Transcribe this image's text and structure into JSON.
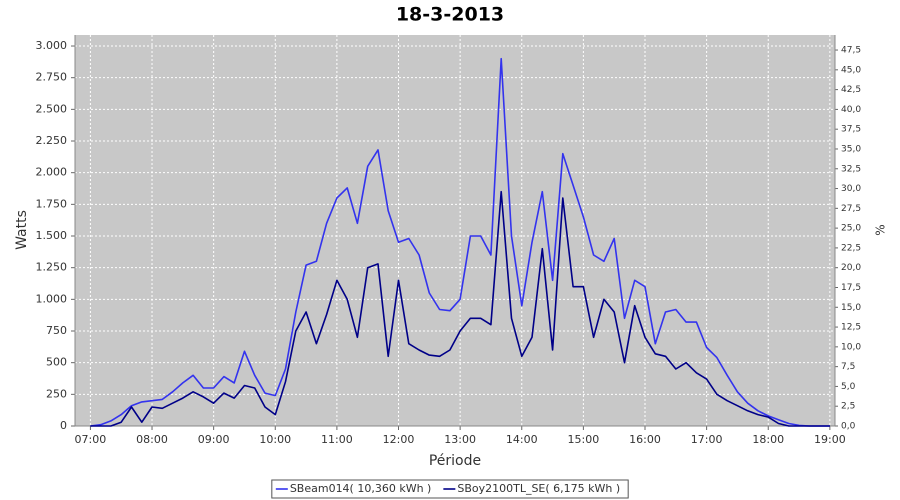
{
  "chart_data": {
    "type": "line",
    "title": "18-3-2013",
    "xlabel": "Période",
    "ylabel": "Watts",
    "y2label": "%",
    "x": [
      "07:00",
      "07:10",
      "07:20",
      "07:30",
      "07:40",
      "07:50",
      "08:00",
      "08:10",
      "08:20",
      "08:30",
      "08:40",
      "08:50",
      "09:00",
      "09:10",
      "09:20",
      "09:30",
      "09:40",
      "09:50",
      "10:00",
      "10:10",
      "10:20",
      "10:30",
      "10:40",
      "10:50",
      "11:00",
      "11:10",
      "11:20",
      "11:30",
      "11:40",
      "11:50",
      "12:00",
      "12:10",
      "12:20",
      "12:30",
      "12:40",
      "12:50",
      "13:00",
      "13:10",
      "13:20",
      "13:30",
      "13:40",
      "13:50",
      "14:00",
      "14:10",
      "14:20",
      "14:30",
      "14:40",
      "14:50",
      "15:00",
      "15:10",
      "15:20",
      "15:30",
      "15:40",
      "15:50",
      "16:00",
      "16:10",
      "16:20",
      "16:30",
      "16:40",
      "16:50",
      "17:00",
      "17:10",
      "17:20",
      "17:30",
      "17:40",
      "17:50",
      "18:00",
      "18:10",
      "18:20",
      "18:30",
      "18:40",
      "18:50",
      "19:00"
    ],
    "series": [
      {
        "name": "SBeam014( 10,360 kWh )",
        "color": "#3333ee",
        "values": [
          0,
          10,
          40,
          90,
          160,
          190,
          200,
          210,
          270,
          340,
          400,
          300,
          300,
          390,
          340,
          590,
          400,
          260,
          240,
          450,
          900,
          1270,
          1300,
          1600,
          1800,
          1880,
          1600,
          2050,
          2180,
          1700,
          1450,
          1480,
          1350,
          1050,
          920,
          910,
          1000,
          1500,
          1500,
          1350,
          2900,
          1500,
          950,
          1450,
          1850,
          1150,
          2150,
          1900,
          1650,
          1350,
          1300,
          1480,
          850,
          1150,
          1100,
          650,
          900,
          920,
          820,
          820,
          620,
          540,
          400,
          270,
          180,
          120,
          80,
          50,
          20,
          5,
          0,
          0,
          0
        ]
      },
      {
        "name": "SBoy2100TL_SE( 6,175 kWh )",
        "color": "#000088",
        "values": [
          0,
          0,
          0,
          30,
          150,
          30,
          150,
          140,
          180,
          220,
          270,
          230,
          180,
          260,
          220,
          320,
          300,
          150,
          90,
          350,
          750,
          900,
          650,
          880,
          1150,
          1000,
          700,
          1250,
          1280,
          550,
          1150,
          650,
          600,
          560,
          550,
          600,
          750,
          850,
          850,
          800,
          1850,
          850,
          550,
          700,
          1400,
          600,
          1800,
          1100,
          1100,
          700,
          1000,
          900,
          500,
          950,
          700,
          570,
          550,
          450,
          500,
          420,
          370,
          250,
          200,
          160,
          120,
          90,
          70,
          20,
          0,
          0,
          0,
          0,
          0
        ]
      }
    ],
    "xlim": [
      "06:45",
      "19:05"
    ],
    "xticks": [
      "07:00",
      "08:00",
      "09:00",
      "10:00",
      "11:00",
      "12:00",
      "13:00",
      "14:00",
      "15:00",
      "16:00",
      "17:00",
      "18:00",
      "19:00"
    ],
    "ylim": [
      0,
      3087
    ],
    "yticks": [
      0,
      250,
      500,
      750,
      {
        "value": 1000,
        "label": "1.000"
      },
      {
        "value": 1250,
        "label": "1.250"
      },
      {
        "value": 1500,
        "label": "1.500"
      },
      {
        "value": 1750,
        "label": "1.750"
      },
      {
        "value": 2000,
        "label": "2.000"
      },
      {
        "value": 2250,
        "label": "2.250"
      },
      {
        "value": 2500,
        "label": "2.500"
      },
      {
        "value": 2750,
        "label": "2.750"
      },
      {
        "value": 3000,
        "label": "3.000"
      }
    ],
    "y2lim": [
      0,
      49.4
    ],
    "y2ticks": [
      {
        "value": 0,
        "label": "0,0"
      },
      {
        "value": 2.5,
        "label": "2,5"
      },
      {
        "value": 5,
        "label": "5,0"
      },
      {
        "value": 7.5,
        "label": "7,5"
      },
      {
        "value": 10,
        "label": "10,0"
      },
      {
        "value": 12.5,
        "label": "12,5"
      },
      {
        "value": 15,
        "label": "15,0"
      },
      {
        "value": 17.5,
        "label": "17,5"
      },
      {
        "value": 20,
        "label": "20,0"
      },
      {
        "value": 22.5,
        "label": "22,5"
      },
      {
        "value": 25,
        "label": "25,0"
      },
      {
        "value": 27.5,
        "label": "27,5"
      },
      {
        "value": 30,
        "label": "30,0"
      },
      {
        "value": 32.5,
        "label": "32,5"
      },
      {
        "value": 35,
        "label": "35,0"
      },
      {
        "value": 37.5,
        "label": "37,5"
      },
      {
        "value": 40,
        "label": "40,0"
      },
      {
        "value": 42.5,
        "label": "42,5"
      },
      {
        "value": 45,
        "label": "45,0"
      },
      {
        "value": 47.5,
        "label": "47,5"
      }
    ],
    "grid": true,
    "legend": "bottom"
  }
}
